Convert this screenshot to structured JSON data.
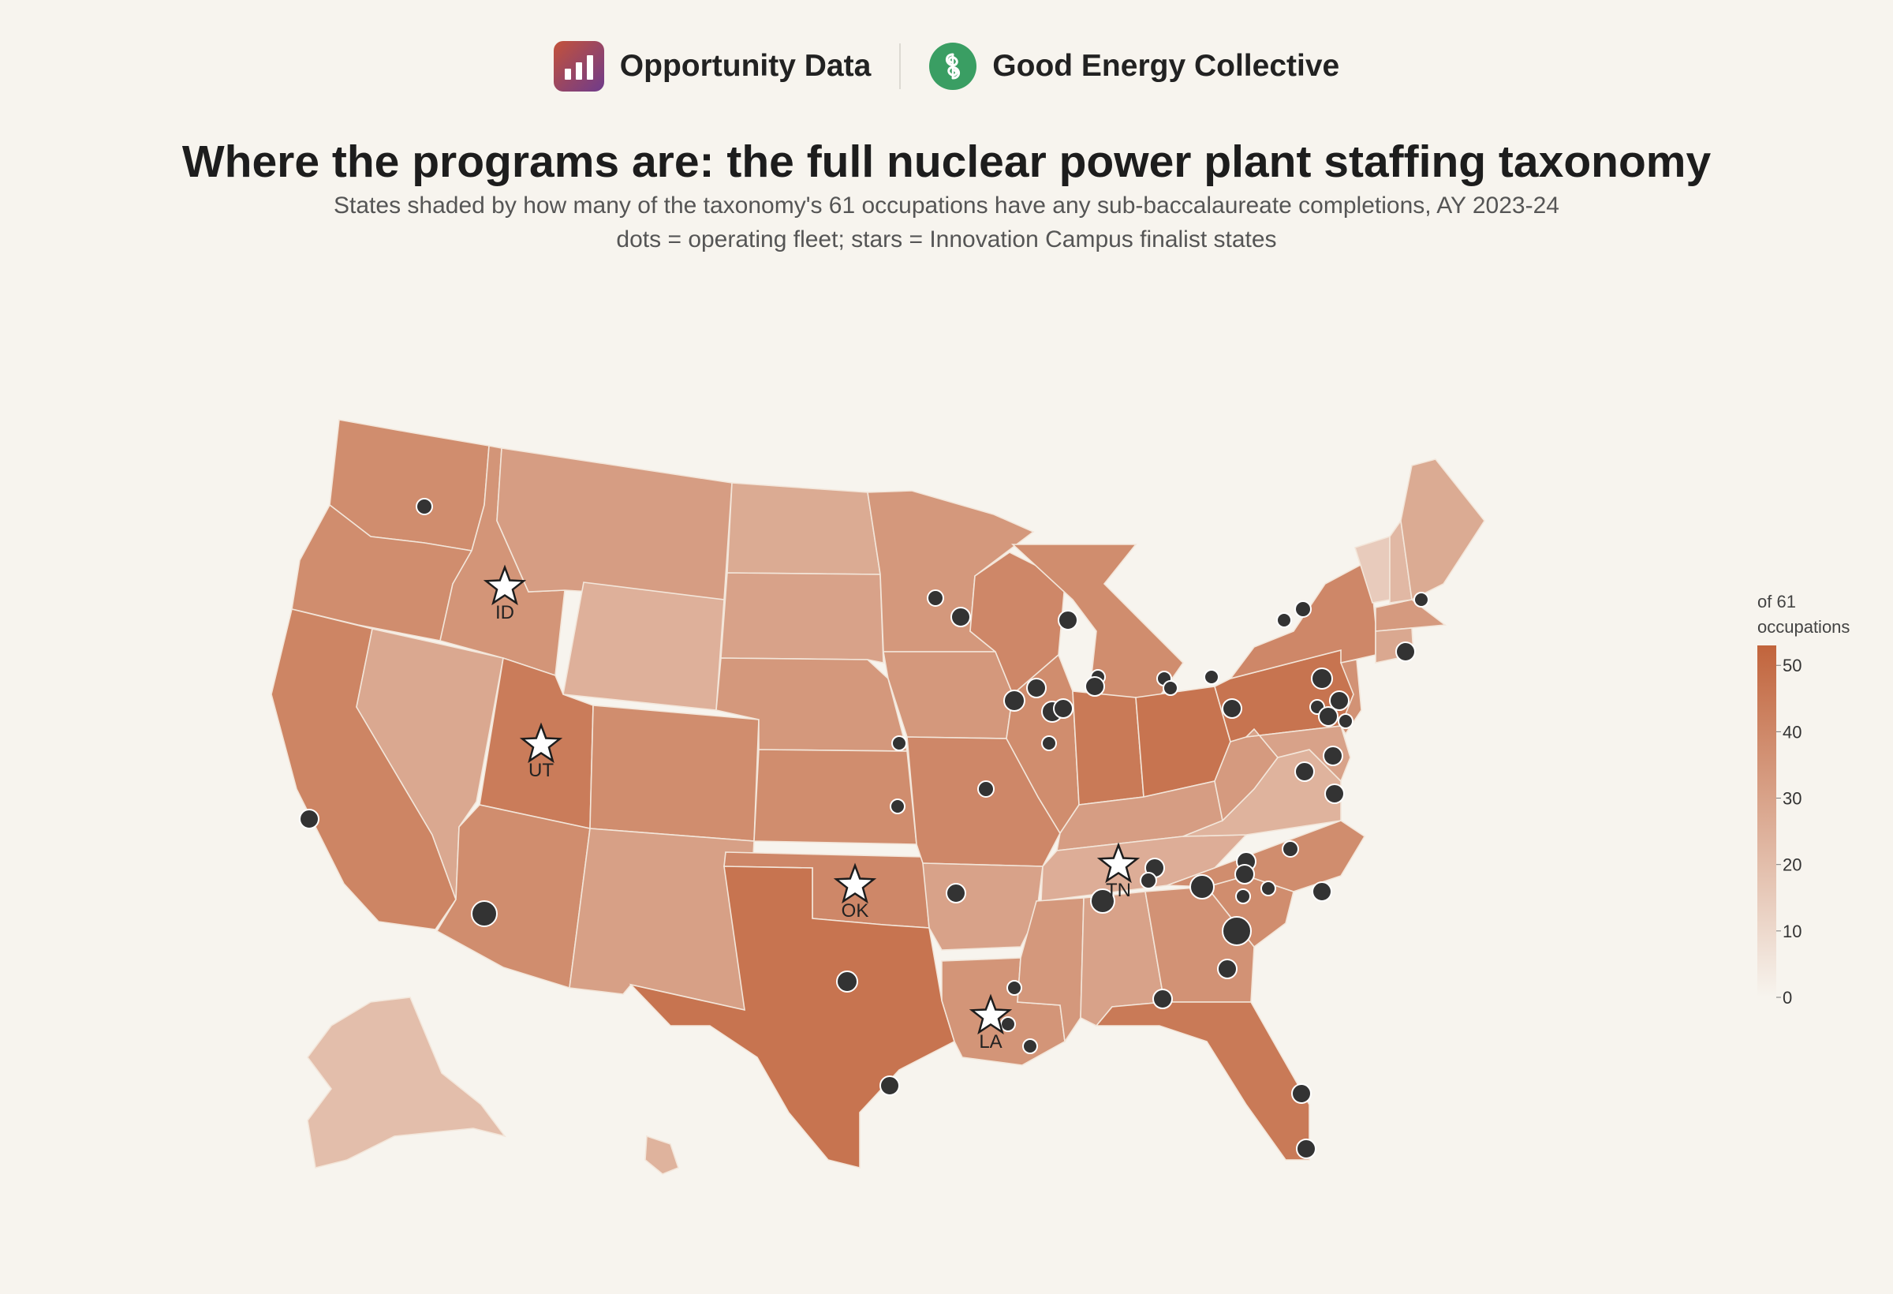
{
  "header": {
    "brand_left": {
      "name": "Opportunity Data",
      "icon": "bar-chart-icon",
      "gradient": [
        "#c4523a",
        "#6e3b8c"
      ]
    },
    "brand_right": {
      "name": "Good Energy Collective",
      "icon": "gec-swirl-icon",
      "color": "#3a9e63"
    }
  },
  "title": "Where the programs are: the full nuclear power plant staffing taxonomy",
  "subtitle_line1": "States shaded by how many of the taxonomy's 61 occupations have any sub-baccalaureate completions, AY 2023-24",
  "subtitle_line2": "dots = operating fleet; stars = Innovation Campus finalist states",
  "legend": {
    "title_line1": "of 61",
    "title_line2": "occupations",
    "ticks": [
      0,
      10,
      20,
      30,
      40,
      50
    ],
    "max": 53,
    "color_low": "#f7f4ee",
    "color_high": "#c1643c"
  },
  "colors": {
    "background": "#f7f4ee",
    "state_border": "#f3e6da",
    "plant_dot": "#333333",
    "star_fill": "#ffffff"
  },
  "chart_data": {
    "type": "choropleth",
    "scale": {
      "min": 0,
      "max": 53
    },
    "states": [
      {
        "code": "WA",
        "value": 38
      },
      {
        "code": "OR",
        "value": 38
      },
      {
        "code": "CA",
        "value": 41
      },
      {
        "code": "NV",
        "value": 28
      },
      {
        "code": "ID",
        "value": 35
      },
      {
        "code": "MT",
        "value": 32
      },
      {
        "code": "WY",
        "value": 25
      },
      {
        "code": "UT",
        "value": 44
      },
      {
        "code": "AZ",
        "value": 38
      },
      {
        "code": "CO",
        "value": 38
      },
      {
        "code": "NM",
        "value": 31
      },
      {
        "code": "ND",
        "value": 27
      },
      {
        "code": "SD",
        "value": 30
      },
      {
        "code": "NE",
        "value": 34
      },
      {
        "code": "KS",
        "value": 38
      },
      {
        "code": "OK",
        "value": 40
      },
      {
        "code": "TX",
        "value": 47
      },
      {
        "code": "MN",
        "value": 34
      },
      {
        "code": "IA",
        "value": 34
      },
      {
        "code": "MO",
        "value": 40
      },
      {
        "code": "AR",
        "value": 30
      },
      {
        "code": "LA",
        "value": 35
      },
      {
        "code": "WI",
        "value": 40
      },
      {
        "code": "IL",
        "value": 38
      },
      {
        "code": "MI",
        "value": 38
      },
      {
        "code": "IN",
        "value": 45
      },
      {
        "code": "OH",
        "value": 47
      },
      {
        "code": "KY",
        "value": 32
      },
      {
        "code": "TN",
        "value": 26
      },
      {
        "code": "MS",
        "value": 34
      },
      {
        "code": "AL",
        "value": 30
      },
      {
        "code": "GA",
        "value": 36
      },
      {
        "code": "FL",
        "value": 45
      },
      {
        "code": "SC",
        "value": 38
      },
      {
        "code": "NC",
        "value": 38
      },
      {
        "code": "VA",
        "value": 24
      },
      {
        "code": "WV",
        "value": 33
      },
      {
        "code": "PA",
        "value": 47
      },
      {
        "code": "NY",
        "value": 40
      },
      {
        "code": "VT",
        "value": 15
      },
      {
        "code": "NH",
        "value": 22
      },
      {
        "code": "ME",
        "value": 27
      },
      {
        "code": "MA",
        "value": 33
      },
      {
        "code": "CT",
        "value": 28
      },
      {
        "code": "NJ",
        "value": 36
      },
      {
        "code": "MD",
        "value": 30
      },
      {
        "code": "AK",
        "value": 20
      },
      {
        "code": "HI",
        "value": 24
      }
    ],
    "innovation_campus_finalists": [
      "ID",
      "UT",
      "OK",
      "TN",
      "LA"
    ]
  }
}
